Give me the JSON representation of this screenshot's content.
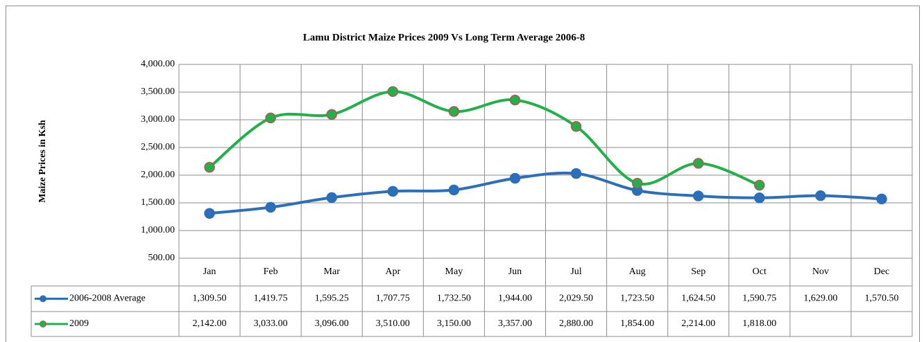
{
  "chart_data": {
    "type": "line",
    "title": "Lamu District Maize Prices 2009 Vs Long Term Average 2006-8",
    "y_axis_label": "Maize Prices in Ksh",
    "categories": [
      "Jan",
      "Feb",
      "Mar",
      "Apr",
      "May",
      "Jun",
      "Jul",
      "Aug",
      "Sep",
      "Oct",
      "Nov",
      "Dec"
    ],
    "series": [
      {
        "name": "2006-2008 Average",
        "color": "#2b6fba",
        "marker_edge": "#2b6fba",
        "values": [
          1309.5,
          1419.75,
          1595.25,
          1707.75,
          1732.5,
          1944,
          2029.5,
          1723.5,
          1624.5,
          1590.75,
          1629,
          1570.5
        ],
        "value_labels": [
          "1,309.50",
          "1,419.75",
          "1,595.25",
          "1,707.75",
          "1,732.50",
          "1,944.00",
          "2,029.50",
          "1,723.50",
          "1,624.50",
          "1,590.75",
          "1,629.00",
          "1,570.50"
        ]
      },
      {
        "name": "2009",
        "color": "#22b04b",
        "marker_edge": "#c0504d",
        "values": [
          2142,
          3033,
          3096,
          3510,
          3150,
          3357,
          2880,
          1854,
          2214,
          1818,
          null,
          null
        ],
        "value_labels": [
          "2,142.00",
          "3,033.00",
          "3,096.00",
          "3,510.00",
          "3,150.00",
          "3,357.00",
          "2,880.00",
          "1,854.00",
          "2,214.00",
          "1,818.00",
          null,
          null
        ]
      }
    ],
    "ylim": [
      500,
      4000
    ],
    "yticks": [
      {
        "value": 500,
        "label": "500.00"
      },
      {
        "value": 1000,
        "label": "1,000.00"
      },
      {
        "value": 1500,
        "label": "1,500.00"
      },
      {
        "value": 2000,
        "label": "2,000.00"
      },
      {
        "value": 2500,
        "label": "2,500.00"
      },
      {
        "value": 3000,
        "label": "3,000.00"
      },
      {
        "value": 3500,
        "label": "3,500.00"
      },
      {
        "value": 4000,
        "label": "4,000.00"
      }
    ],
    "grid": true,
    "smooth": true
  }
}
